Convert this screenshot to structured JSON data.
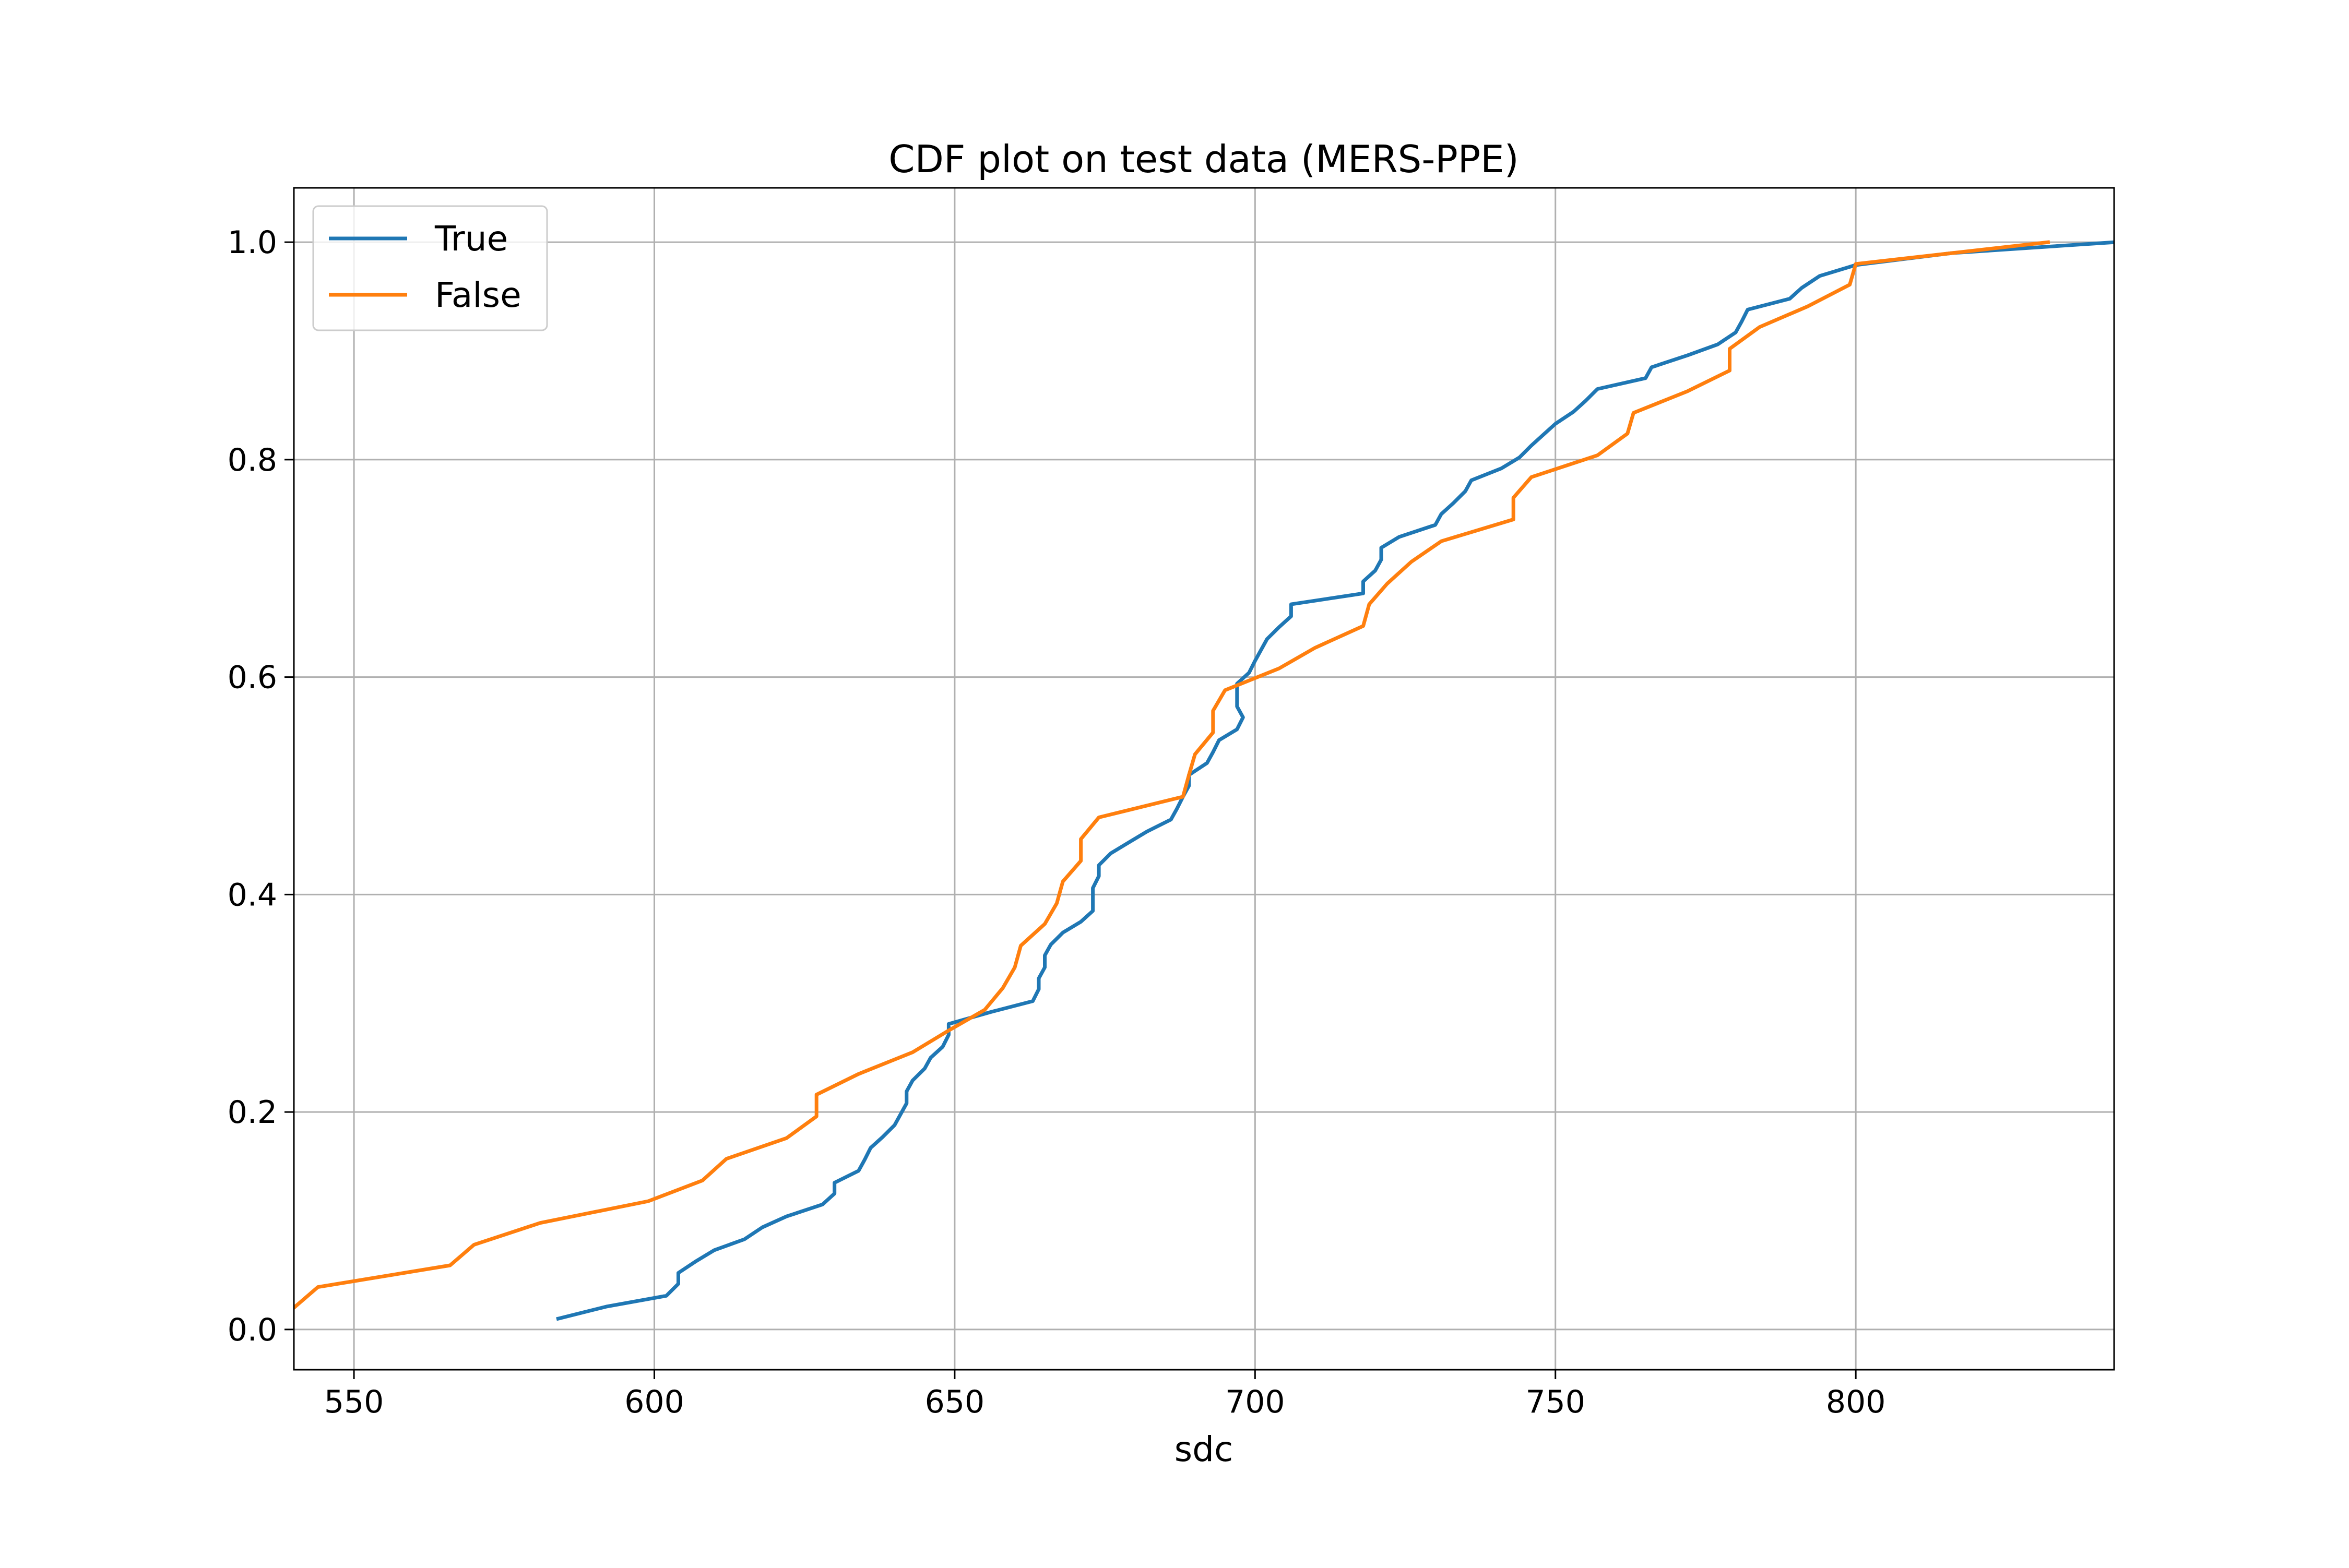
{
  "chart_data": {
    "type": "line",
    "title": "CDF plot on test data (MERS-PPE)",
    "xlabel": "sdc",
    "ylabel": "",
    "xlim": [
      540,
      843
    ],
    "ylim": [
      -0.037,
      1.05
    ],
    "xticks": [
      550,
      600,
      650,
      700,
      750,
      800
    ],
    "yticks": [
      0.0,
      0.2,
      0.4,
      0.6,
      0.8,
      1.0
    ],
    "xtick_labels": [
      "550",
      "600",
      "650",
      "700",
      "750",
      "800"
    ],
    "ytick_labels": [
      "0.0",
      "0.2",
      "0.4",
      "0.6",
      "0.8",
      "1.0"
    ],
    "grid": true,
    "legend_position": "top-left",
    "series": [
      {
        "name": "True",
        "color": "#1f77b4",
        "points": [
          [
            584,
            0.01
          ],
          [
            592,
            0.021
          ],
          [
            602,
            0.031
          ],
          [
            604,
            0.042
          ],
          [
            604,
            0.052
          ],
          [
            607,
            0.063
          ],
          [
            610,
            0.073
          ],
          [
            615,
            0.083
          ],
          [
            618,
            0.094
          ],
          [
            622,
            0.104
          ],
          [
            628,
            0.115
          ],
          [
            630,
            0.125
          ],
          [
            630,
            0.135
          ],
          [
            634,
            0.146
          ],
          [
            635,
            0.156
          ],
          [
            636,
            0.167
          ],
          [
            638,
            0.177
          ],
          [
            640,
            0.188
          ],
          [
            641,
            0.198
          ],
          [
            642,
            0.208
          ],
          [
            642,
            0.219
          ],
          [
            643,
            0.229
          ],
          [
            645,
            0.24
          ],
          [
            646,
            0.25
          ],
          [
            648,
            0.26
          ],
          [
            649,
            0.271
          ],
          [
            649,
            0.281
          ],
          [
            656,
            0.292
          ],
          [
            663,
            0.302
          ],
          [
            664,
            0.313
          ],
          [
            664,
            0.323
          ],
          [
            665,
            0.333
          ],
          [
            665,
            0.344
          ],
          [
            666,
            0.354
          ],
          [
            668,
            0.365
          ],
          [
            671,
            0.375
          ],
          [
            673,
            0.385
          ],
          [
            673,
            0.396
          ],
          [
            673,
            0.406
          ],
          [
            674,
            0.417
          ],
          [
            674,
            0.427
          ],
          [
            676,
            0.438
          ],
          [
            679,
            0.448
          ],
          [
            682,
            0.458
          ],
          [
            686,
            0.469
          ],
          [
            687,
            0.479
          ],
          [
            688,
            0.49
          ],
          [
            689,
            0.5
          ],
          [
            689,
            0.51
          ],
          [
            692,
            0.521
          ],
          [
            693,
            0.531
          ],
          [
            694,
            0.542
          ],
          [
            697,
            0.552
          ],
          [
            698,
            0.563
          ],
          [
            697,
            0.573
          ],
          [
            697,
            0.583
          ],
          [
            697,
            0.594
          ],
          [
            699,
            0.604
          ],
          [
            700,
            0.615
          ],
          [
            701,
            0.625
          ],
          [
            702,
            0.635
          ],
          [
            704,
            0.646
          ],
          [
            706,
            0.656
          ],
          [
            706,
            0.667
          ],
          [
            718,
            0.677
          ],
          [
            718,
            0.688
          ],
          [
            720,
            0.698
          ],
          [
            721,
            0.708
          ],
          [
            721,
            0.719
          ],
          [
            724,
            0.729
          ],
          [
            730,
            0.74
          ],
          [
            731,
            0.75
          ],
          [
            733,
            0.76
          ],
          [
            735,
            0.771
          ],
          [
            736,
            0.781
          ],
          [
            741,
            0.792
          ],
          [
            744,
            0.802
          ],
          [
            746,
            0.813
          ],
          [
            748,
            0.823
          ],
          [
            750,
            0.833
          ],
          [
            753,
            0.844
          ],
          [
            755,
            0.854
          ],
          [
            757,
            0.865
          ],
          [
            765,
            0.875
          ],
          [
            766,
            0.885
          ],
          [
            772,
            0.896
          ],
          [
            777,
            0.906
          ],
          [
            780,
            0.917
          ],
          [
            781,
            0.927
          ],
          [
            782,
            0.938
          ],
          [
            789,
            0.948
          ],
          [
            791,
            0.958
          ],
          [
            794,
            0.969
          ],
          [
            800,
            0.979
          ],
          [
            816,
            0.99
          ],
          [
            843,
            1.0
          ]
        ]
      },
      {
        "name": "False",
        "color": "#ff7f0e",
        "points": [
          [
            540,
            0.02
          ],
          [
            544,
            0.039
          ],
          [
            566,
            0.059
          ],
          [
            570,
            0.078
          ],
          [
            581,
            0.098
          ],
          [
            599,
            0.118
          ],
          [
            608,
            0.137
          ],
          [
            612,
            0.157
          ],
          [
            622,
            0.176
          ],
          [
            627,
            0.196
          ],
          [
            627,
            0.216
          ],
          [
            634,
            0.235
          ],
          [
            643,
            0.255
          ],
          [
            649,
            0.275
          ],
          [
            655,
            0.294
          ],
          [
            658,
            0.314
          ],
          [
            660,
            0.333
          ],
          [
            661,
            0.353
          ],
          [
            665,
            0.373
          ],
          [
            667,
            0.392
          ],
          [
            668,
            0.412
          ],
          [
            671,
            0.431
          ],
          [
            671,
            0.451
          ],
          [
            674,
            0.471
          ],
          [
            688,
            0.49
          ],
          [
            689,
            0.51
          ],
          [
            690,
            0.529
          ],
          [
            693,
            0.549
          ],
          [
            693,
            0.569
          ],
          [
            695,
            0.588
          ],
          [
            704,
            0.608
          ],
          [
            710,
            0.627
          ],
          [
            718,
            0.647
          ],
          [
            719,
            0.667
          ],
          [
            722,
            0.686
          ],
          [
            726,
            0.706
          ],
          [
            731,
            0.725
          ],
          [
            743,
            0.745
          ],
          [
            743,
            0.765
          ],
          [
            746,
            0.784
          ],
          [
            757,
            0.804
          ],
          [
            762,
            0.824
          ],
          [
            763,
            0.843
          ],
          [
            772,
            0.863
          ],
          [
            779,
            0.882
          ],
          [
            779,
            0.902
          ],
          [
            784,
            0.922
          ],
          [
            792,
            0.941
          ],
          [
            799,
            0.961
          ],
          [
            800,
            0.98
          ],
          [
            832,
            1.0
          ]
        ]
      }
    ]
  }
}
